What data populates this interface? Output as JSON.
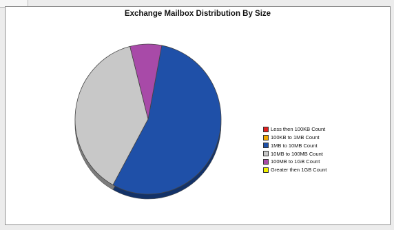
{
  "chart_data": {
    "type": "pie",
    "title": "Exchange Mailbox Distribution By Size",
    "slices": [
      {
        "label": "Less then 100KB Count",
        "value": 0,
        "color": "#e02020"
      },
      {
        "label": "100KB to 1MB Count",
        "value": 0,
        "color": "#f0a800"
      },
      {
        "label": "1MB to 10MB Count",
        "value": 55,
        "color": "#1f50a8"
      },
      {
        "label": "10MB to 100MB Count",
        "value": 38,
        "color": "#c8c8c8"
      },
      {
        "label": "100MB to 1GB Count",
        "value": 7,
        "color": "#a84aa8"
      },
      {
        "label": "Greater then 1GB Count",
        "value": 0,
        "color": "#f0f000"
      }
    ],
    "legend_position": "right",
    "style": "3d"
  }
}
